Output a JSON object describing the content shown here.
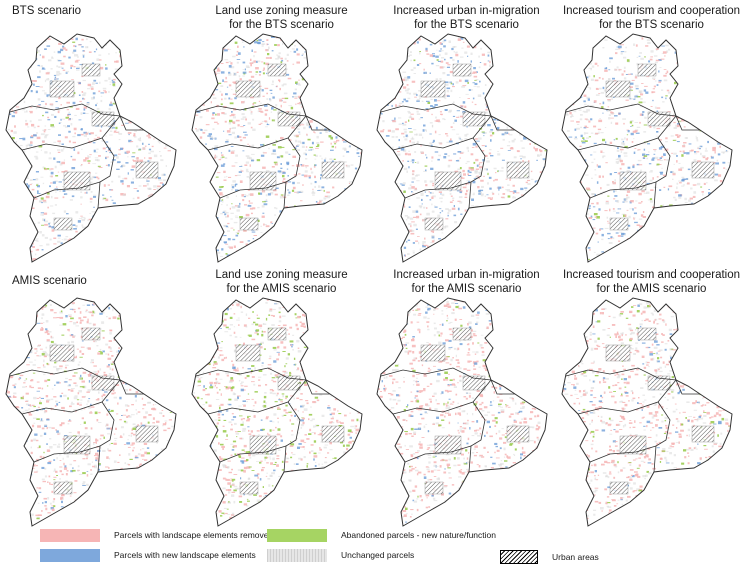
{
  "maps": [
    {
      "title": "BTS scenario",
      "pattern": {
        "removed": 0.3,
        "new": 0.22,
        "abandoned": 0.04
      }
    },
    {
      "title": "Land use zoning measure\nfor the BTS scenario",
      "pattern": {
        "removed": 0.3,
        "new": 0.22,
        "abandoned": 0.1
      }
    },
    {
      "title": "Increased urban in-migration\nfor the BTS scenario",
      "pattern": {
        "removed": 0.28,
        "new": 0.24,
        "abandoned": 0.04
      }
    },
    {
      "title": "Increased tourism and cooperation\nfor the BTS scenario",
      "pattern": {
        "removed": 0.3,
        "new": 0.22,
        "abandoned": 0.07
      }
    },
    {
      "title": "AMIS scenario",
      "pattern": {
        "removed": 0.48,
        "new": 0.1,
        "abandoned": 0.09
      }
    },
    {
      "title": "Land use zoning measure\nfor the AMIS scenario",
      "pattern": {
        "removed": 0.42,
        "new": 0.08,
        "abandoned": 0.2
      }
    },
    {
      "title": "Increased urban in-migration\nfor the AMIS scenario",
      "pattern": {
        "removed": 0.48,
        "new": 0.12,
        "abandoned": 0.07
      }
    },
    {
      "title": "Increased tourism and cooperation\nfor the AMIS scenario",
      "pattern": {
        "removed": 0.5,
        "new": 0.09,
        "abandoned": 0.09
      }
    }
  ],
  "legend": {
    "removed": "Parcels with landscape elements removed",
    "new": "Parcels with new landscape elements",
    "abandoned": "Abandoned parcels - new nature/function",
    "unchanged": "Unchanged parcels",
    "urban": "Urban areas"
  },
  "colors": {
    "removed": "#f6b5b5",
    "new": "#6f9fd8",
    "abandoned": "#9ccc52",
    "unchanged": "#d8d8d8",
    "urban": "#000000",
    "boundary": "#333333"
  }
}
